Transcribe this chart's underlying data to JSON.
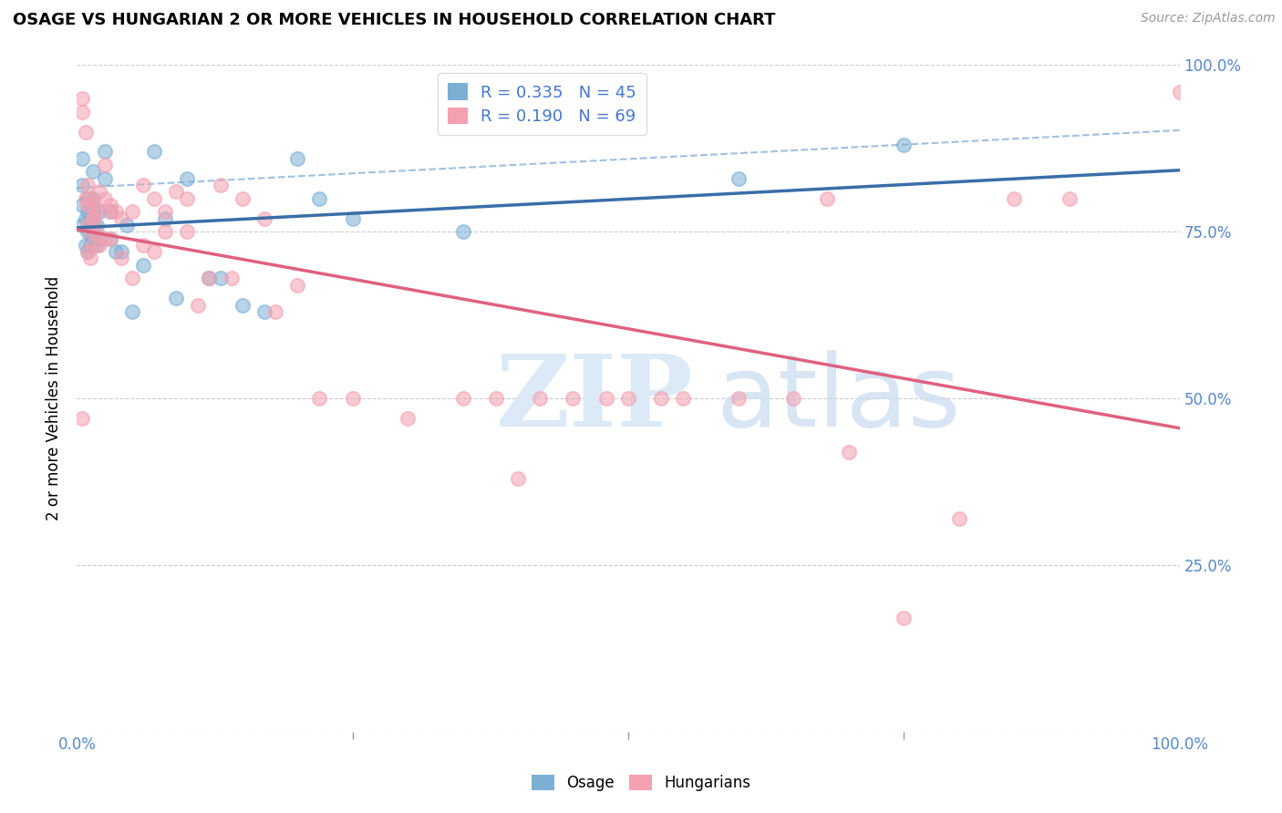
{
  "title": "OSAGE VS HUNGARIAN 2 OR MORE VEHICLES IN HOUSEHOLD CORRELATION CHART",
  "source": "Source: ZipAtlas.com",
  "ylabel": "2 or more Vehicles in Household",
  "xlim": [
    0,
    1.0
  ],
  "ylim": [
    0,
    1.0
  ],
  "osage_color": "#7BAFD4",
  "hungarian_color": "#F4A0B0",
  "trend_osage_color": "#3A6EA8",
  "trend_hungarian_color": "#E06080",
  "trend_dashed_color": "#A0C0E0",
  "legend_R_osage": "R = 0.335",
  "legend_N_osage": "N = 45",
  "legend_R_hungarian": "R = 0.190",
  "legend_N_hungarian": "N = 69",
  "osage_x": [
    0.005,
    0.005,
    0.005,
    0.005,
    0.008,
    0.008,
    0.01,
    0.01,
    0.01,
    0.01,
    0.012,
    0.012,
    0.012,
    0.015,
    0.015,
    0.015,
    0.015,
    0.015,
    0.018,
    0.018,
    0.02,
    0.02,
    0.025,
    0.025,
    0.03,
    0.03,
    0.035,
    0.04,
    0.045,
    0.05,
    0.06,
    0.07,
    0.08,
    0.09,
    0.1,
    0.12,
    0.13,
    0.15,
    0.17,
    0.2,
    0.22,
    0.25,
    0.35,
    0.6,
    0.75
  ],
  "osage_y": [
    0.76,
    0.79,
    0.82,
    0.86,
    0.73,
    0.77,
    0.72,
    0.75,
    0.78,
    0.8,
    0.73,
    0.75,
    0.77,
    0.74,
    0.76,
    0.78,
    0.8,
    0.84,
    0.73,
    0.76,
    0.74,
    0.78,
    0.83,
    0.87,
    0.74,
    0.78,
    0.72,
    0.72,
    0.76,
    0.63,
    0.7,
    0.87,
    0.77,
    0.65,
    0.83,
    0.68,
    0.68,
    0.64,
    0.63,
    0.86,
    0.8,
    0.77,
    0.75,
    0.83,
    0.88
  ],
  "hungarian_x": [
    0.005,
    0.005,
    0.005,
    0.008,
    0.008,
    0.01,
    0.01,
    0.01,
    0.01,
    0.012,
    0.012,
    0.012,
    0.015,
    0.015,
    0.015,
    0.015,
    0.018,
    0.018,
    0.02,
    0.02,
    0.025,
    0.025,
    0.025,
    0.03,
    0.03,
    0.03,
    0.035,
    0.04,
    0.04,
    0.05,
    0.05,
    0.06,
    0.06,
    0.07,
    0.07,
    0.08,
    0.08,
    0.09,
    0.1,
    0.1,
    0.11,
    0.12,
    0.13,
    0.14,
    0.15,
    0.17,
    0.18,
    0.2,
    0.22,
    0.25,
    0.3,
    0.35,
    0.38,
    0.4,
    0.42,
    0.45,
    0.48,
    0.5,
    0.53,
    0.55,
    0.6,
    0.65,
    0.68,
    0.7,
    0.75,
    0.8,
    0.85,
    0.9,
    1.0
  ],
  "hungarian_y": [
    0.95,
    0.93,
    0.47,
    0.9,
    0.8,
    0.76,
    0.72,
    0.82,
    0.79,
    0.8,
    0.75,
    0.71,
    0.79,
    0.77,
    0.77,
    0.73,
    0.78,
    0.75,
    0.81,
    0.73,
    0.85,
    0.8,
    0.74,
    0.79,
    0.78,
    0.74,
    0.78,
    0.77,
    0.71,
    0.78,
    0.68,
    0.82,
    0.73,
    0.8,
    0.72,
    0.78,
    0.75,
    0.81,
    0.75,
    0.8,
    0.64,
    0.68,
    0.82,
    0.68,
    0.8,
    0.77,
    0.63,
    0.67,
    0.5,
    0.5,
    0.47,
    0.5,
    0.5,
    0.38,
    0.5,
    0.5,
    0.5,
    0.5,
    0.5,
    0.5,
    0.5,
    0.5,
    0.8,
    0.42,
    0.17,
    0.32,
    0.8,
    0.8,
    0.96
  ]
}
